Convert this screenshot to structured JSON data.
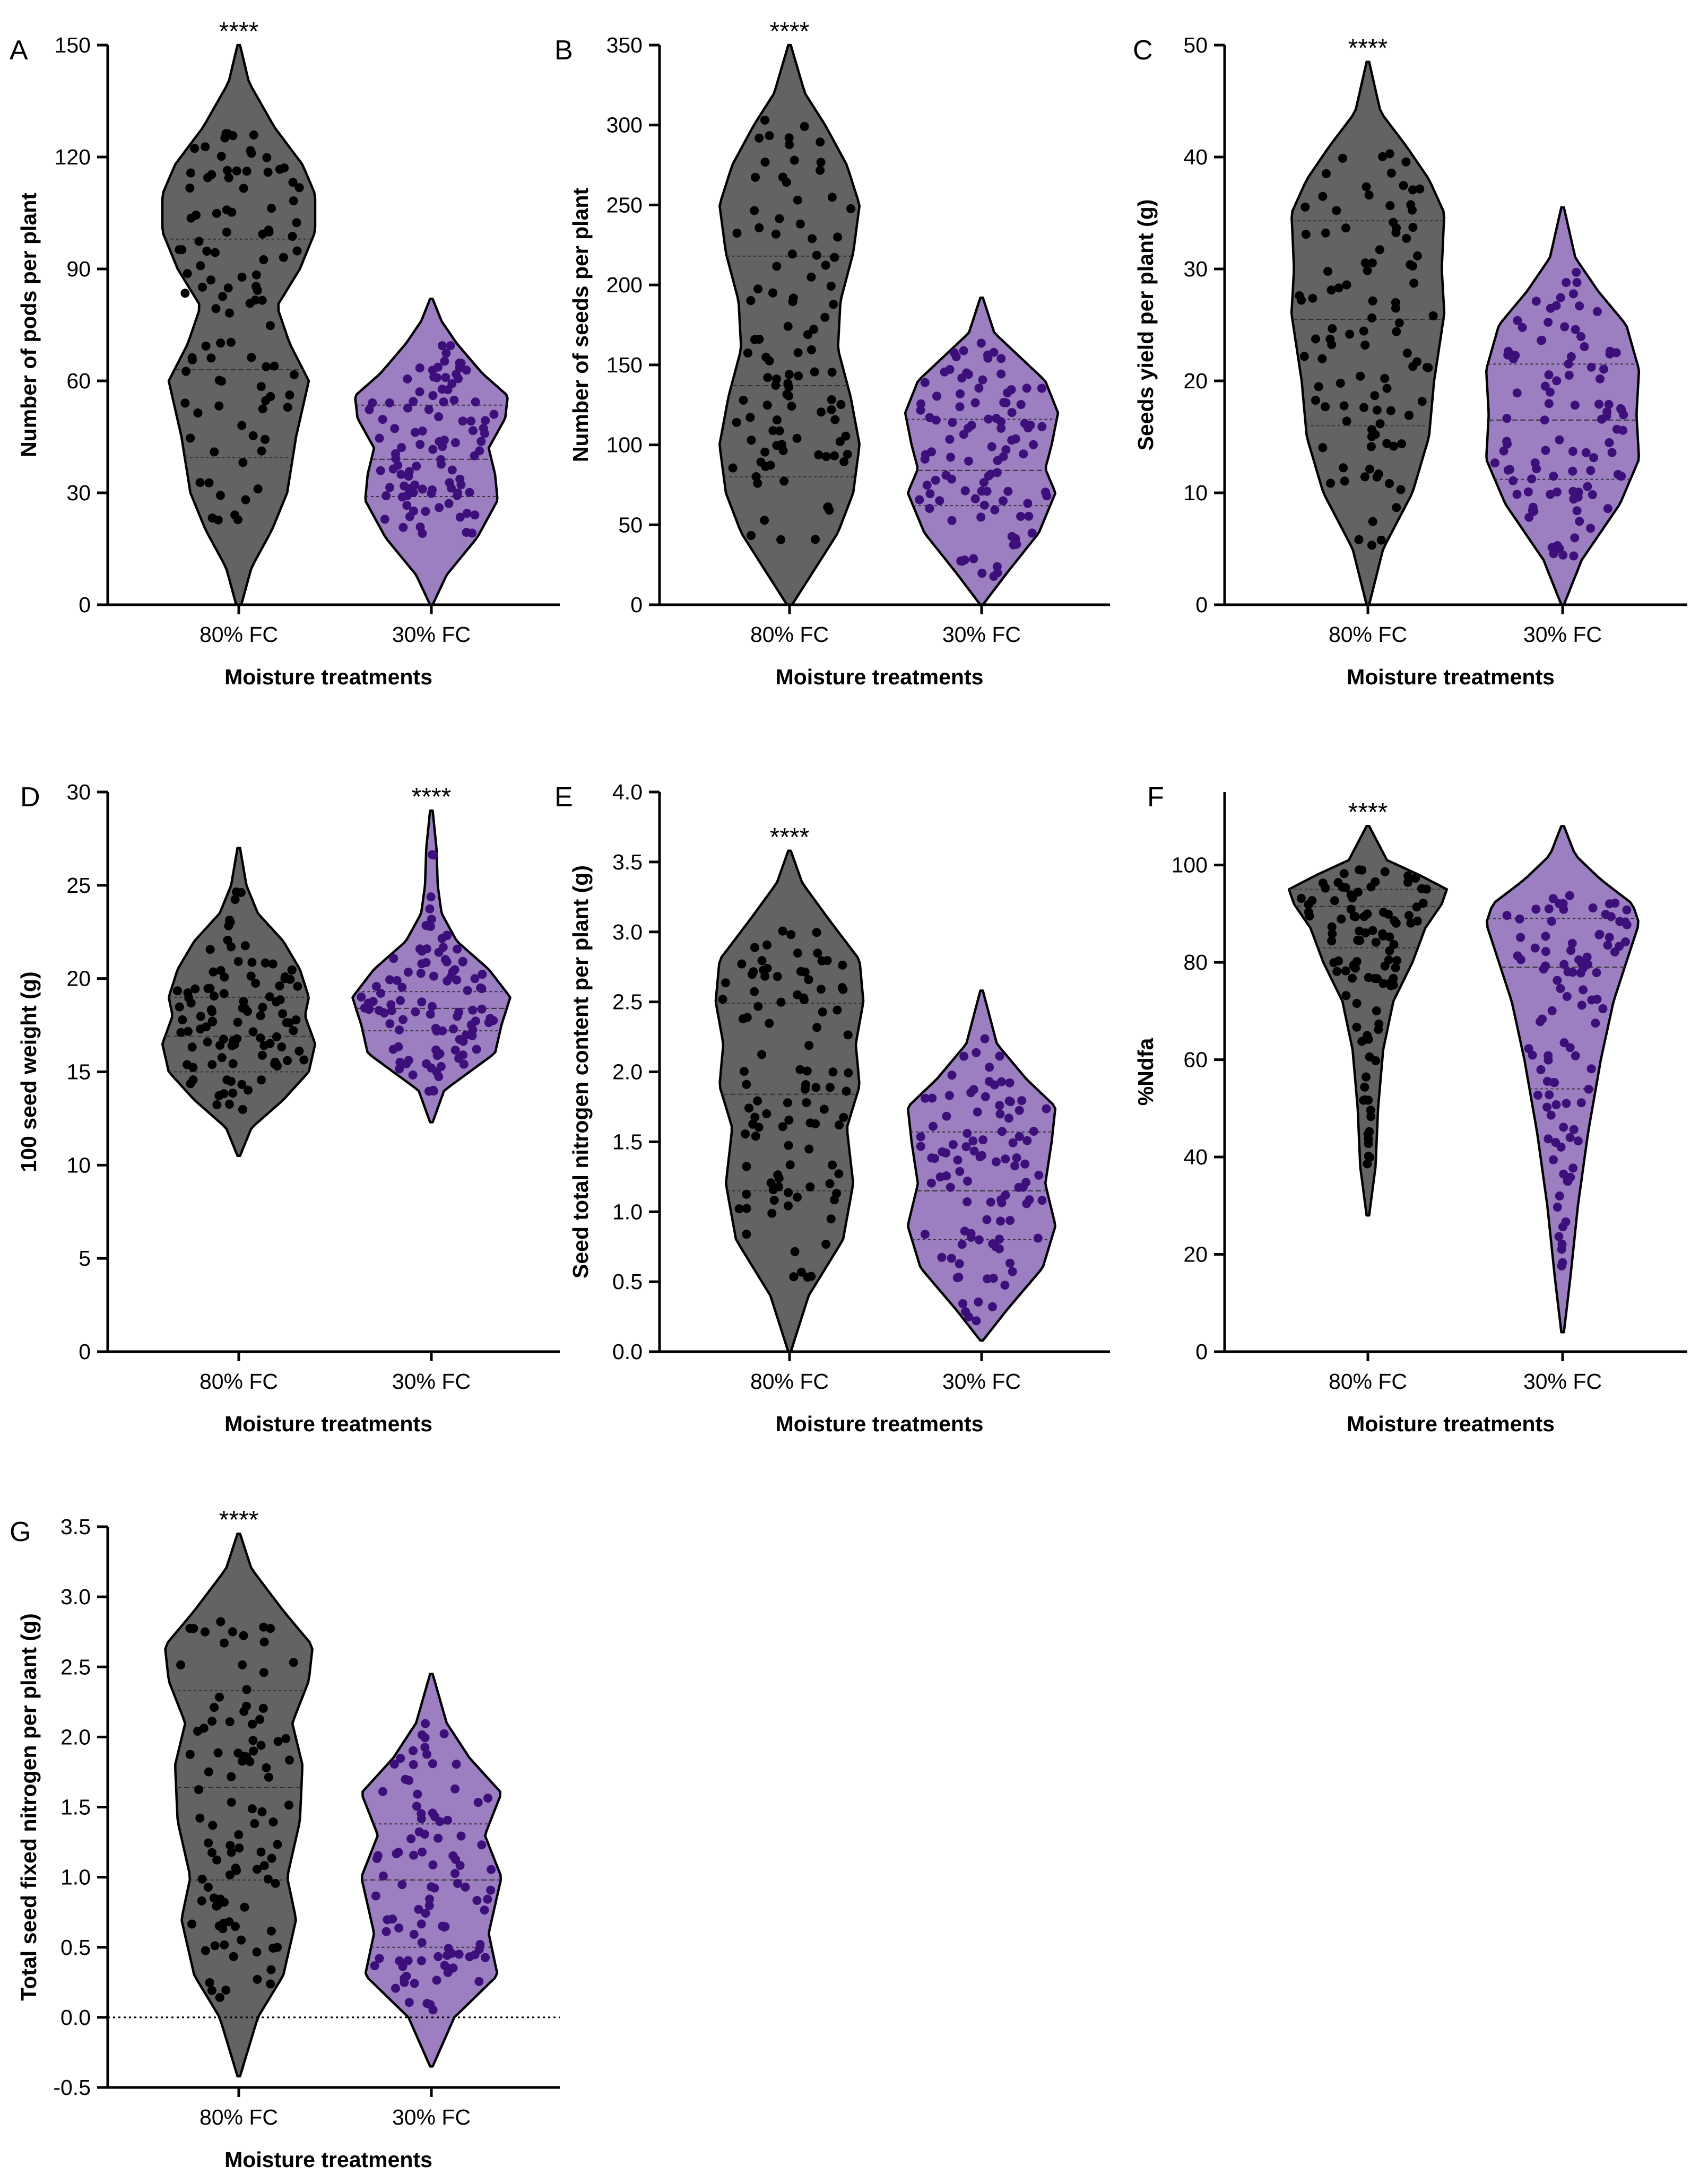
{
  "colors": {
    "violin_80": "#636363",
    "violin_30": "#9b7fc0",
    "dots_80": "#000000",
    "dots_30": "#3d0f7a"
  },
  "chart_data": [
    {
      "panel": "A",
      "type": "violin",
      "categories": [
        "80% FC",
        "30% FC"
      ],
      "xlabel": "Moisture treatments",
      "ylabel": "Number of pods per plant",
      "ylim": [
        0,
        150
      ],
      "yticks": [
        0,
        30,
        60,
        90,
        120,
        150
      ],
      "ytick_labels": [
        "0",
        "30",
        "60",
        "90",
        "120",
        "150"
      ],
      "significance": {
        "label": "****",
        "group": 0
      },
      "groups": [
        {
          "min": 0,
          "max": 150,
          "q1": 39.5,
          "median": 63,
          "q3": 98,
          "data_min": 19,
          "data_max": 128,
          "profile": [
            [
              0,
              0.02
            ],
            [
              10,
              0.1
            ],
            [
              20,
              0.26
            ],
            [
              30,
              0.38
            ],
            [
              45,
              0.45
            ],
            [
              60,
              0.55
            ],
            [
              70,
              0.4
            ],
            [
              80,
              0.3
            ],
            [
              90,
              0.48
            ],
            [
              100,
              0.6
            ],
            [
              110,
              0.6
            ],
            [
              118,
              0.5
            ],
            [
              128,
              0.28
            ],
            [
              140,
              0.08
            ],
            [
              150,
              0.01
            ]
          ],
          "extreme_points": [
            [
              83.5,
              -1
            ]
          ]
        },
        {
          "min": 0,
          "max": 82,
          "q1": 29,
          "median": 39,
          "q3": 53.5,
          "data_min": 19,
          "data_max": 71,
          "profile": [
            [
              0,
              0.01
            ],
            [
              8,
              0.12
            ],
            [
              18,
              0.36
            ],
            [
              28,
              0.52
            ],
            [
              35,
              0.5
            ],
            [
              42,
              0.45
            ],
            [
              50,
              0.58
            ],
            [
              56,
              0.6
            ],
            [
              62,
              0.4
            ],
            [
              70,
              0.2
            ],
            [
              76,
              0.08
            ],
            [
              82,
              0.01
            ]
          ]
        }
      ]
    },
    {
      "panel": "B",
      "type": "violin",
      "categories": [
        "80% FC",
        "30% FC"
      ],
      "xlabel": "Moisture treatments",
      "ylabel": "Number of seeds per plant",
      "ylim": [
        0,
        350
      ],
      "yticks": [
        0,
        50,
        100,
        150,
        200,
        250,
        300,
        350
      ],
      "ytick_labels": [
        "0",
        "50",
        "100",
        "150",
        "200",
        "250",
        "300",
        "350"
      ],
      "significance": {
        "label": "****",
        "group": 0
      },
      "groups": [
        {
          "min": 0,
          "max": 350,
          "q1": 80,
          "median": 137,
          "q3": 218,
          "data_min": 31,
          "data_max": 307,
          "profile": [
            [
              0,
              0.02
            ],
            [
              20,
              0.18
            ],
            [
              45,
              0.38
            ],
            [
              70,
              0.5
            ],
            [
              100,
              0.55
            ],
            [
              130,
              0.48
            ],
            [
              160,
              0.38
            ],
            [
              190,
              0.4
            ],
            [
              220,
              0.5
            ],
            [
              250,
              0.55
            ],
            [
              275,
              0.45
            ],
            [
              300,
              0.28
            ],
            [
              320,
              0.12
            ],
            [
              350,
              0.01
            ]
          ]
        },
        {
          "min": 0,
          "max": 192,
          "q1": 62,
          "median": 84,
          "q3": 116,
          "data_min": 17,
          "data_max": 166,
          "profile": [
            [
              0,
              0.01
            ],
            [
              20,
              0.2
            ],
            [
              45,
              0.45
            ],
            [
              70,
              0.58
            ],
            [
              85,
              0.5
            ],
            [
              100,
              0.55
            ],
            [
              120,
              0.6
            ],
            [
              140,
              0.5
            ],
            [
              155,
              0.3
            ],
            [
              170,
              0.1
            ],
            [
              192,
              0.01
            ]
          ]
        }
      ]
    },
    {
      "panel": "C",
      "type": "violin",
      "categories": [
        "80% FC",
        "30% FC"
      ],
      "xlabel": "Moisture treatments",
      "ylabel": "Seeds yield per plant (g)",
      "ylim": [
        0,
        50
      ],
      "yticks": [
        0,
        10,
        20,
        30,
        40,
        50
      ],
      "ytick_labels": [
        "0",
        "10",
        "20",
        "30",
        "40",
        "50"
      ],
      "significance": {
        "label": "****",
        "group": 0
      },
      "groups": [
        {
          "min": 0,
          "max": 48.5,
          "q1": 16,
          "median": 25.5,
          "q3": 34.3,
          "data_min": 5,
          "data_max": 41,
          "profile": [
            [
              0,
              0.01
            ],
            [
              5,
              0.12
            ],
            [
              10,
              0.35
            ],
            [
              15,
              0.48
            ],
            [
              20,
              0.52
            ],
            [
              26,
              0.6
            ],
            [
              30,
              0.58
            ],
            [
              35,
              0.6
            ],
            [
              38,
              0.48
            ],
            [
              41,
              0.3
            ],
            [
              44,
              0.1
            ],
            [
              48.5,
              0.01
            ]
          ]
        },
        {
          "min": 0,
          "max": 35.5,
          "q1": 11.2,
          "median": 16.5,
          "q3": 21.5,
          "data_min": 4,
          "data_max": 31,
          "profile": [
            [
              0,
              0.01
            ],
            [
              4,
              0.15
            ],
            [
              9,
              0.45
            ],
            [
              13,
              0.6
            ],
            [
              17,
              0.58
            ],
            [
              21,
              0.6
            ],
            [
              25,
              0.5
            ],
            [
              28,
              0.28
            ],
            [
              31,
              0.1
            ],
            [
              35.5,
              0.01
            ]
          ]
        }
      ]
    },
    {
      "panel": "D",
      "type": "violin",
      "categories": [
        "80% FC",
        "30% FC"
      ],
      "xlabel": "Moisture treatments",
      "ylabel": "100 seed weight (g)",
      "ylim": [
        0,
        30
      ],
      "yticks": [
        0,
        5,
        10,
        15,
        20,
        25,
        30
      ],
      "ytick_labels": [
        "0",
        "5",
        "10",
        "15",
        "20",
        "25",
        "30"
      ],
      "significance": {
        "label": "****",
        "group": 1
      },
      "groups": [
        {
          "min": 10.5,
          "max": 27,
          "q1": 15,
          "median": 16.9,
          "q3": 19,
          "data_min": 12.8,
          "data_max": 25,
          "profile": [
            [
              10.5,
              0.01
            ],
            [
              12,
              0.1
            ],
            [
              13.5,
              0.35
            ],
            [
              15,
              0.55
            ],
            [
              16.5,
              0.6
            ],
            [
              18,
              0.52
            ],
            [
              19,
              0.55
            ],
            [
              20.5,
              0.48
            ],
            [
              22,
              0.35
            ],
            [
              23.5,
              0.15
            ],
            [
              25,
              0.06
            ],
            [
              27,
              0.01
            ]
          ]
        },
        {
          "min": 12.3,
          "max": 29,
          "q1": 17.2,
          "median": 18.4,
          "q3": 19.3,
          "data_min": 13.8,
          "data_max": 27.5,
          "profile": [
            [
              12.3,
              0.01
            ],
            [
              14,
              0.1
            ],
            [
              16,
              0.5
            ],
            [
              17.5,
              0.55
            ],
            [
              19,
              0.62
            ],
            [
              20.5,
              0.45
            ],
            [
              22,
              0.2
            ],
            [
              23.5,
              0.08
            ],
            [
              25,
              0.05
            ],
            [
              27,
              0.04
            ],
            [
              29,
              0.01
            ]
          ]
        }
      ]
    },
    {
      "panel": "E",
      "type": "violin",
      "categories": [
        "80% FC",
        "30% FC"
      ],
      "xlabel": "Moisture treatments",
      "ylabel": "Seed total nitrogen content per plant (g)",
      "ylim": [
        0,
        4
      ],
      "yticks": [
        0,
        0.5,
        1,
        1.5,
        2,
        2.5,
        3,
        3.5,
        4
      ],
      "ytick_labels": [
        "0.0",
        "0.5",
        "1.0",
        "1.5",
        "2.0",
        "2.5",
        "3.0",
        "3.5",
        "4.0"
      ],
      "significance": {
        "label": "****",
        "group": 0
      },
      "groups": [
        {
          "min": 0,
          "max": 3.58,
          "q1": 1.15,
          "median": 1.84,
          "q3": 2.49,
          "data_min": 0.45,
          "data_max": 3.05,
          "profile": [
            [
              0,
              0.01
            ],
            [
              0.4,
              0.15
            ],
            [
              0.8,
              0.42
            ],
            [
              1.2,
              0.5
            ],
            [
              1.6,
              0.45
            ],
            [
              1.9,
              0.55
            ],
            [
              2.2,
              0.52
            ],
            [
              2.5,
              0.58
            ],
            [
              2.8,
              0.55
            ],
            [
              3.1,
              0.3
            ],
            [
              3.35,
              0.1
            ],
            [
              3.58,
              0.01
            ]
          ]
        },
        {
          "min": 0.08,
          "max": 2.58,
          "q1": 0.8,
          "median": 1.15,
          "q3": 1.57,
          "data_min": 0.22,
          "data_max": 2.25,
          "profile": [
            [
              0.08,
              0.01
            ],
            [
              0.3,
              0.2
            ],
            [
              0.6,
              0.48
            ],
            [
              0.9,
              0.58
            ],
            [
              1.2,
              0.5
            ],
            [
              1.5,
              0.55
            ],
            [
              1.75,
              0.58
            ],
            [
              1.95,
              0.35
            ],
            [
              2.2,
              0.12
            ],
            [
              2.58,
              0.01
            ]
          ]
        }
      ]
    },
    {
      "panel": "F",
      "type": "violin",
      "categories": [
        "80% FC",
        "30% FC"
      ],
      "xlabel": "Moisture treatments",
      "ylabel": "%Ndfa",
      "ylim": [
        0,
        115
      ],
      "yticks": [
        0,
        20,
        40,
        60,
        80,
        100
      ],
      "ytick_labels": [
        "0",
        "20",
        "40",
        "60",
        "80",
        "100"
      ],
      "significance": {
        "label": "****",
        "group": 0
      },
      "groups": [
        {
          "min": 28,
          "max": 108,
          "q1": 83,
          "median": 91.5,
          "q3": 95,
          "data_min": 36,
          "data_max": 100,
          "profile": [
            [
              28,
              0.01
            ],
            [
              38,
              0.06
            ],
            [
              50,
              0.08
            ],
            [
              62,
              0.12
            ],
            [
              72,
              0.2
            ],
            [
              80,
              0.35
            ],
            [
              87,
              0.45
            ],
            [
              92,
              0.58
            ],
            [
              95,
              0.62
            ],
            [
              98,
              0.4
            ],
            [
              101,
              0.15
            ],
            [
              108,
              0.01
            ]
          ]
        },
        {
          "min": 4,
          "max": 108,
          "q1": 54,
          "median": 79,
          "q3": 89,
          "data_min": 16,
          "data_max": 94,
          "profile": [
            [
              4,
              0.01
            ],
            [
              15,
              0.06
            ],
            [
              30,
              0.12
            ],
            [
              45,
              0.2
            ],
            [
              60,
              0.3
            ],
            [
              72,
              0.4
            ],
            [
              80,
              0.5
            ],
            [
              88,
              0.6
            ],
            [
              92,
              0.55
            ],
            [
              97,
              0.3
            ],
            [
              102,
              0.1
            ],
            [
              108,
              0.01
            ]
          ]
        }
      ]
    },
    {
      "panel": "G",
      "type": "violin",
      "categories": [
        "80% FC",
        "30% FC"
      ],
      "xlabel": "Moisture treatments",
      "ylabel": "Total seed fixed nitrogen per plant (g)",
      "ylim": [
        -0.5,
        3.5
      ],
      "yticks": [
        -0.5,
        0,
        0.5,
        1,
        1.5,
        2,
        2.5,
        3,
        3.5
      ],
      "ytick_labels": [
        "-0.5",
        "0.0",
        "0.5",
        "1.0",
        "1.5",
        "2.0",
        "2.5",
        "3.0",
        "3.5"
      ],
      "reference_line": 0,
      "significance": {
        "label": "****",
        "group": 0
      },
      "groups": [
        {
          "min": -0.42,
          "max": 3.45,
          "q1": 0.98,
          "median": 1.64,
          "q3": 2.33,
          "data_min": 0.12,
          "data_max": 2.85,
          "profile": [
            [
              -0.42,
              0.01
            ],
            [
              0,
              0.15
            ],
            [
              0.3,
              0.35
            ],
            [
              0.7,
              0.45
            ],
            [
              1.0,
              0.38
            ],
            [
              1.4,
              0.48
            ],
            [
              1.8,
              0.5
            ],
            [
              2.1,
              0.42
            ],
            [
              2.4,
              0.55
            ],
            [
              2.65,
              0.58
            ],
            [
              2.9,
              0.35
            ],
            [
              3.2,
              0.1
            ],
            [
              3.45,
              0.01
            ]
          ]
        },
        {
          "min": -0.35,
          "max": 2.45,
          "q1": 0.5,
          "median": 0.98,
          "q3": 1.38,
          "data_min": 0.02,
          "data_max": 2.1,
          "profile": [
            [
              -0.35,
              0.01
            ],
            [
              0,
              0.18
            ],
            [
              0.3,
              0.52
            ],
            [
              0.6,
              0.45
            ],
            [
              1.0,
              0.55
            ],
            [
              1.3,
              0.42
            ],
            [
              1.6,
              0.55
            ],
            [
              1.85,
              0.3
            ],
            [
              2.1,
              0.12
            ],
            [
              2.45,
              0.01
            ]
          ]
        }
      ]
    }
  ]
}
